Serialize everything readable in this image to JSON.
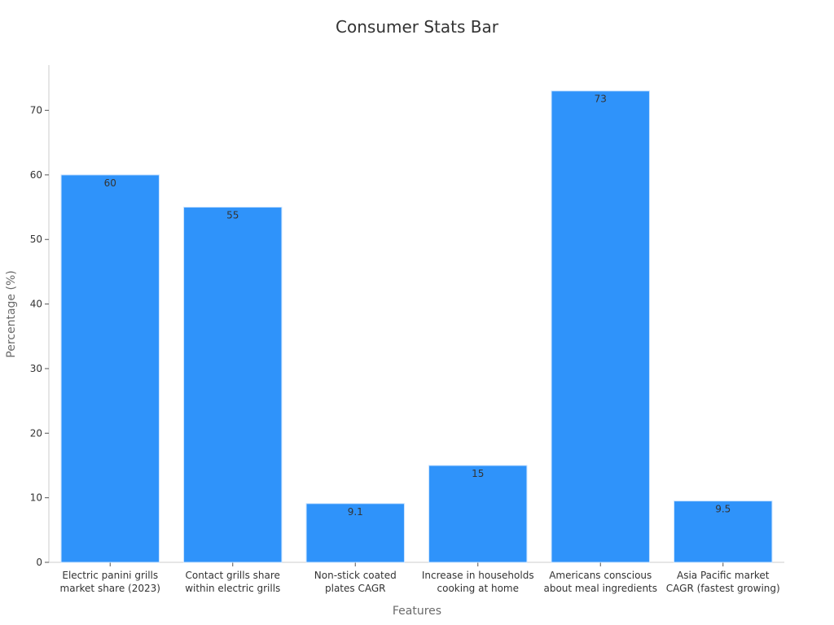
{
  "chart_data": {
    "type": "bar",
    "title": "Consumer Stats Bar",
    "xlabel": "Features",
    "ylabel": "Percentage (%)",
    "ylim": [
      0,
      77
    ],
    "yticks": [
      0,
      10,
      20,
      30,
      40,
      50,
      60,
      70
    ],
    "grid": false,
    "categories": [
      [
        "Electric panini grills",
        "market share (2023)"
      ],
      [
        "Contact grills share",
        "within electric grills"
      ],
      [
        "Non-stick coated",
        "plates CAGR"
      ],
      [
        "Increase in households",
        "cooking at home"
      ],
      [
        "Americans conscious",
        "about meal ingredients"
      ],
      [
        "Asia Pacific market",
        "CAGR (fastest growing)"
      ]
    ],
    "values": [
      60,
      55,
      9.1,
      15,
      73,
      9.5
    ],
    "data_labels": [
      "60",
      "55",
      "9.1",
      "15",
      "73",
      "9.5"
    ],
    "bar_color": "#2f93fa",
    "bar_edge_color": "#c9e3ff"
  }
}
